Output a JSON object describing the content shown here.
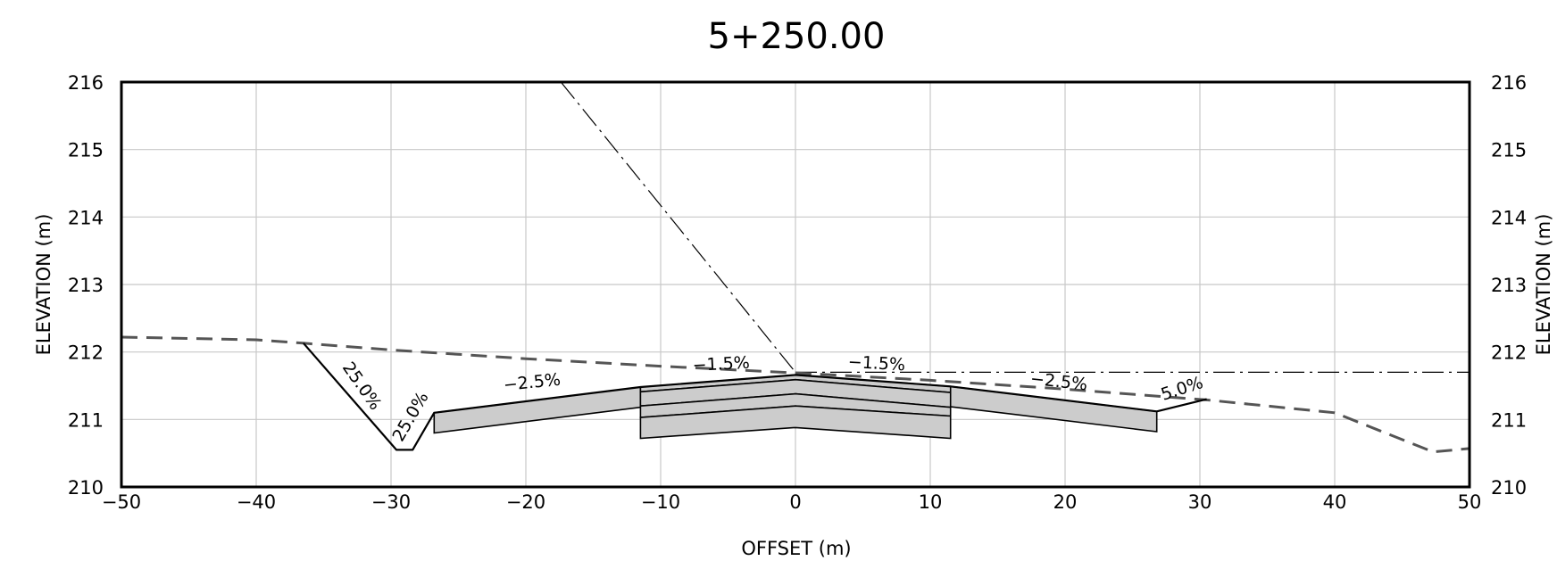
{
  "title": "5+250.00",
  "x_axis": {
    "label": "OFFSET (m)",
    "ticks": [
      "−50",
      "−40",
      "−30",
      "−20",
      "−10",
      "0",
      "10",
      "20",
      "30",
      "40",
      "50"
    ]
  },
  "y_axis": {
    "label": "ELEVATION (m)",
    "ticks": [
      "210",
      "211",
      "212",
      "213",
      "214",
      "215",
      "216"
    ]
  },
  "slope_labels": [
    "25.0%",
    "25.0%",
    "−2.5%",
    "−1.5%",
    "−1.5%",
    "−2.5%",
    "5.0%"
  ],
  "colors": {
    "ground": "#555555",
    "pavement_fill": "#cccccc",
    "outline": "#000000",
    "grid": "#c8c8c8"
  },
  "chart_data": {
    "type": "line",
    "xlim": [
      -50,
      50
    ],
    "ylim": [
      210,
      216
    ],
    "grid": true,
    "existing_ground": {
      "style": "dashed",
      "x": [
        -50,
        -40,
        -36.5,
        -30,
        -20,
        -10,
        0,
        10,
        20,
        30.5,
        40,
        47.3,
        50
      ],
      "y": [
        212.22,
        212.18,
        212.13,
        212.03,
        211.9,
        211.79,
        211.69,
        211.58,
        211.45,
        211.29,
        211.1,
        210.52,
        210.57
      ]
    },
    "design_surface": {
      "x": [
        -36.5,
        -29.6,
        -28.4,
        -26.8,
        -11.5,
        0,
        11.5,
        26.8,
        30.5
      ],
      "y": [
        212.13,
        210.55,
        210.55,
        211.1,
        211.48,
        211.66,
        211.49,
        211.12,
        211.3
      ]
    },
    "pavement_layers": [
      {
        "x": [
          -26.8,
          -11.5,
          -11.5,
          -26.8
        ],
        "y": [
          211.1,
          211.48,
          211.18,
          210.8
        ]
      },
      {
        "x": [
          26.8,
          11.5,
          11.5,
          26.8
        ],
        "y": [
          211.12,
          211.49,
          211.19,
          210.82
        ]
      },
      {
        "x": [
          -11.5,
          0,
          11.5,
          11.5,
          0,
          -11.5
        ],
        "y": [
          211.48,
          211.66,
          211.49,
          211.4,
          211.59,
          211.41
        ]
      },
      {
        "x": [
          -11.5,
          0,
          11.5,
          11.5,
          0,
          -11.5
        ],
        "y": [
          211.41,
          211.59,
          211.4,
          211.18,
          211.38,
          211.2
        ]
      },
      {
        "x": [
          -11.5,
          0,
          11.5,
          11.5,
          0,
          -11.5
        ],
        "y": [
          211.2,
          211.38,
          211.18,
          211.05,
          211.2,
          211.03
        ]
      },
      {
        "x": [
          -11.5,
          0,
          11.5,
          11.5,
          0,
          -11.5
        ],
        "y": [
          211.03,
          211.2,
          211.05,
          210.72,
          210.88,
          210.72
        ]
      }
    ],
    "reference_lines": [
      {
        "style": "dash-dot",
        "x": [
          -17.4,
          0
        ],
        "y": [
          216,
          211.7
        ]
      },
      {
        "style": "dash-dot",
        "x": [
          0,
          50
        ],
        "y": [
          211.7,
          211.7
        ]
      }
    ],
    "slope_annotations": [
      {
        "text": "25.0%",
        "x": -32.5,
        "y": 211.45,
        "angle": 55
      },
      {
        "text": "25.0%",
        "x": -28.2,
        "y": 211.0,
        "angle": -60
      },
      {
        "text": "−2.5%",
        "x": -19.5,
        "y": 211.47,
        "angle": -6
      },
      {
        "text": "−1.5%",
        "x": -5.5,
        "y": 211.74,
        "angle": -3
      },
      {
        "text": "−1.5%",
        "x": 6,
        "y": 211.75,
        "angle": 3
      },
      {
        "text": "−2.5%",
        "x": 19.5,
        "y": 211.48,
        "angle": 6
      },
      {
        "text": "5.0%",
        "x": 28.8,
        "y": 211.38,
        "angle": -18
      }
    ]
  }
}
